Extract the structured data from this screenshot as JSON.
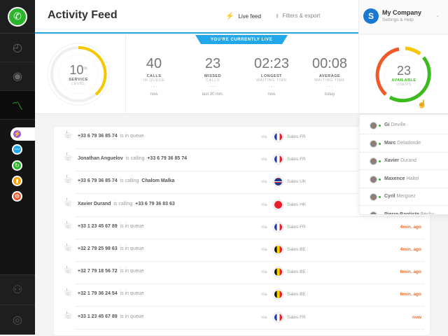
{
  "sidebar": {
    "main_icons": [
      "phone-icon",
      "call-history-icon",
      "contacts-icon",
      "activity-icon"
    ],
    "sub_icons": [
      {
        "name": "live-icon",
        "color": "#a05fd0"
      },
      {
        "name": "analytics-icon",
        "color": "#22a7e8"
      },
      {
        "name": "refresh-icon",
        "color": "#2bb52b"
      },
      {
        "name": "stats-icon",
        "color": "#f5a000"
      },
      {
        "name": "settings-icon",
        "color": "#f05a28"
      }
    ]
  },
  "header": {
    "title": "Activity Feed",
    "live_feed": "Live feed",
    "filters": "Filters & export",
    "company": "My Company",
    "company_sub": "Settings & Help",
    "company_initial": "S"
  },
  "stats": {
    "live_badge": "YOU'RE CURRENTLY LIVE",
    "service": {
      "value": "10",
      "unit": "%",
      "l1": "SERVICE",
      "l2": "LEVEL",
      "percent": 10
    },
    "items": [
      {
        "num": "40",
        "l1": "CALLS",
        "l2": "IN QUEUE",
        "when": "now"
      },
      {
        "num": "23",
        "l1": "MISSED",
        "l2": "CALLS",
        "when": "last 30 min."
      },
      {
        "num": "02:23",
        "l1": "LONGEST",
        "l2": "WAITING TIME",
        "when": "now"
      },
      {
        "num": "00:08",
        "l1": "AVERAGE",
        "l2": "WAITING TIME",
        "when": "today"
      }
    ],
    "available": {
      "value": "23",
      "l1": "AVAILABLE",
      "l2": "USERS"
    },
    "dots": "- - -"
  },
  "feed": [
    {
      "a": "+33 6 79 36 85 74",
      "verb": "is in queue",
      "b": "",
      "via": "via",
      "flag": "fr",
      "team": "Sales FR",
      "ago": "",
      "dir": "in"
    },
    {
      "a": "Jonathan Anguelov",
      "verb": "is calling",
      "b": "+33 6 79 36 85 74",
      "via": "via",
      "flag": "fr",
      "team": "Sales FR",
      "ago": "",
      "dir": "out"
    },
    {
      "a": "+33 6 79 36 85 74",
      "verb": "is calling",
      "b": "Chalom Malka",
      "via": "via",
      "flag": "uk",
      "team": "Sales UK",
      "ago": "",
      "dir": "out"
    },
    {
      "a": "Xavier Durand",
      "verb": "is calling",
      "b": "+33 6 79 36 83 63",
      "via": "via",
      "flag": "hk",
      "team": "Sales HK",
      "ago": "",
      "dir": "out"
    },
    {
      "a": "+33 1 23 45 67 89",
      "verb": "is in queue",
      "b": "",
      "via": "via",
      "flag": "fr",
      "team": "Sales FR",
      "ago": "4min. ago",
      "dir": "in"
    },
    {
      "a": "+32 2 79 25 98 63",
      "verb": "is in queue",
      "b": "",
      "via": "via",
      "flag": "be",
      "team": "Sales BE",
      "ago": "4min. ago",
      "dir": "in"
    },
    {
      "a": "+32 7 79 18 56 72",
      "verb": "is in queue",
      "b": "",
      "via": "via",
      "flag": "be",
      "team": "Sales BE",
      "ago": "6min. ago",
      "dir": "in"
    },
    {
      "a": "+32 1 79 36 24 54",
      "verb": "is in queue",
      "b": "",
      "via": "via",
      "flag": "be",
      "team": "Sales BE",
      "ago": "6min. ago",
      "dir": "in"
    },
    {
      "a": "+33 1 23 45 67 89",
      "verb": "is in queue",
      "b": "",
      "via": "via",
      "flag": "fr",
      "team": "Sales FR",
      "ago": "now",
      "dir": "in"
    }
  ],
  "users": [
    {
      "first": "Gi",
      "last": "Deville"
    },
    {
      "first": "Marc",
      "last": "Deladonde"
    },
    {
      "first": "Xavier",
      "last": "Durand"
    },
    {
      "first": "Maxence",
      "last": "Haltel"
    },
    {
      "first": "Cyril",
      "last": "Merguez"
    },
    {
      "first": "Pierre-Baptiste",
      "last": "Béchu"
    }
  ]
}
